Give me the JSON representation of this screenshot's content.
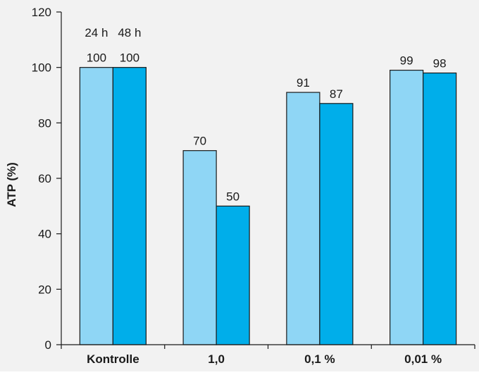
{
  "chart_data": {
    "type": "bar",
    "title": "",
    "xlabel": "",
    "ylabel": "ATP (%)",
    "ylim": [
      0,
      120
    ],
    "yticks": [
      0,
      20,
      40,
      60,
      80,
      100,
      120
    ],
    "categories": [
      "Kontrolle",
      "1,0",
      "0,1 %",
      "0,01 %"
    ],
    "series": [
      {
        "name": "24 h",
        "values": [
          100,
          70,
          91,
          99
        ],
        "color": "#8fd6f5"
      },
      {
        "name": "48 h",
        "values": [
          100,
          50,
          87,
          98
        ],
        "color": "#00aeea"
      }
    ],
    "legend": "inline above first bar group",
    "grid": false,
    "background": "#f2f2f2",
    "bar_outline": "#1a1a1a"
  }
}
